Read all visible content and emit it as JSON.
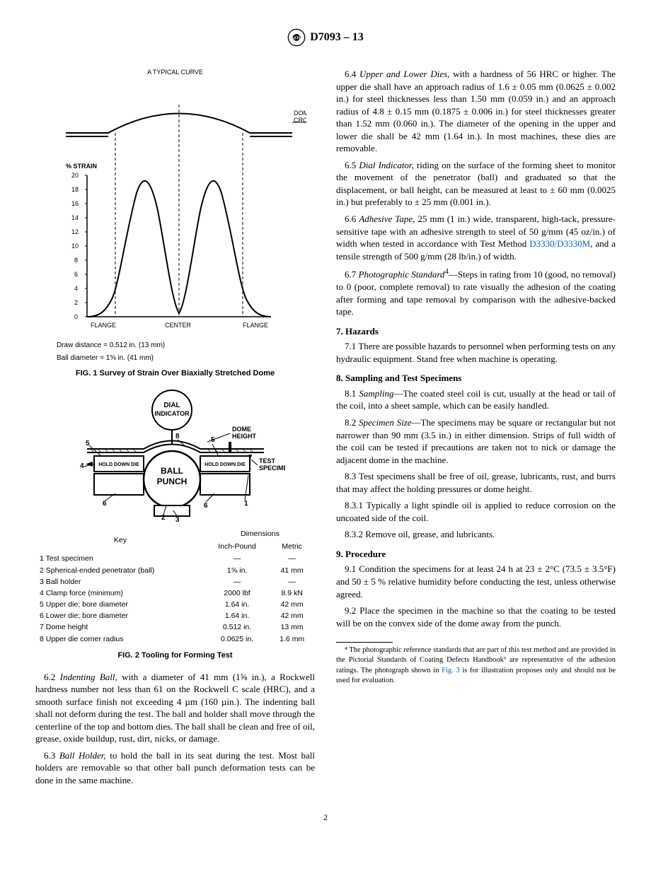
{
  "header": {
    "standard": "D7093 – 13"
  },
  "fig1": {
    "title_top": "A TYPICAL CURVE",
    "label_dome": "DOME\nCROSS-SECTION",
    "label_strain": "% STRAIN",
    "x_labels": {
      "left": "FLANGE",
      "center": "CENTER",
      "right": "FLANGE"
    },
    "y_ticks": [
      0,
      2,
      4,
      6,
      8,
      10,
      12,
      14,
      16,
      18,
      20
    ],
    "curve_points": [
      [
        0,
        0
      ],
      [
        10,
        1
      ],
      [
        20,
        4
      ],
      [
        30,
        12
      ],
      [
        40,
        18
      ],
      [
        50,
        20
      ],
      [
        60,
        17
      ],
      [
        70,
        8
      ],
      [
        80,
        2
      ],
      [
        85,
        0.5
      ],
      [
        90,
        2
      ],
      [
        100,
        8
      ],
      [
        110,
        17
      ],
      [
        120,
        20
      ],
      [
        130,
        18
      ],
      [
        140,
        12
      ],
      [
        150,
        4
      ],
      [
        160,
        1
      ],
      [
        170,
        0
      ]
    ],
    "dome_curve": [
      [
        0,
        0
      ],
      [
        30,
        1
      ],
      [
        60,
        6
      ],
      [
        85,
        12
      ],
      [
        100,
        14
      ],
      [
        115,
        12
      ],
      [
        140,
        6
      ],
      [
        170,
        1
      ],
      [
        200,
        0
      ]
    ],
    "note1": "Draw distance = 0.512 in. (13 mm)",
    "note2": "Ball diameter = 1⅝ in. (41 mm)",
    "caption": "FIG. 1 Survey of Strain Over Biaxially Stretched Dome"
  },
  "fig2": {
    "dial": "DIAL",
    "indicator": "INDICATOR",
    "ball": "BALL",
    "punch": "PUNCH",
    "hold_down": "HOLD DOWN DIE",
    "dome_h": "DOME\nHEIGHT",
    "test_spec": "TEST\nSPECIMEN",
    "key_head": "Key",
    "dim_head": "Dimensions",
    "col_ip": "Inch-Pound",
    "col_m": "Metric",
    "rows": [
      {
        "n": "1",
        "label": "Test specimen",
        "ip": "—",
        "m": "—"
      },
      {
        "n": "2",
        "label": "Spherical-ended penetrator (ball)",
        "ip": "1⅝ in.",
        "m": "41 mm"
      },
      {
        "n": "3",
        "label": "Ball holder",
        "ip": "—",
        "m": "—"
      },
      {
        "n": "4",
        "label": "Clamp force (minimum)",
        "ip": "2000 lbf",
        "m": "8.9 kN"
      },
      {
        "n": "5",
        "label": "Upper die; bore diameter",
        "ip": "1.64 in.",
        "m": "42 mm"
      },
      {
        "n": "6",
        "label": "Lower die; bore diameter",
        "ip": "1.64 in.",
        "m": "42 mm"
      },
      {
        "n": "7",
        "label": "Dome height",
        "ip": "0.512 in.",
        "m": "13 mm"
      },
      {
        "n": "8",
        "label": "Upper die corner radius",
        "ip": "0.0625 in.",
        "m": "1.6 mm"
      }
    ],
    "caption": "FIG. 2 Tooling for Forming Test"
  },
  "left_text": {
    "p62": "6.2 Indenting Ball, with a diameter of 41 mm (1⅝ in.), a Rockwell hardness number not less than 61 on the Rockwell C scale (HRC), and a smooth surface finish not exceeding 4 µm (160 µin.). The indenting ball shall not deform during the test. The ball and holder shall move through the centerline of the top and bottom dies. The ball shall be clean and free of oil, grease, oxide buildup, rust, dirt, nicks, or damage.",
    "p63": "6.3 Ball Holder, to hold the ball in its seat during the test. Most ball holders are removable so that other ball punch deformation tests can be done in the same machine."
  },
  "right_text": {
    "p64": "6.4 Upper and Lower Dies, with a hardness of 56 HRC or higher. The upper die shall have an approach radius of 1.6 ± 0.05 mm (0.0625 ± 0.002 in.) for steel thicknesses less than 1.50 mm (0.059 in.) and an approach radius of 4.8 ± 0.15 mm (0.1875 ± 0.006 in.) for steel thicknesses greater than 1.52 mm (0.060 in.). The diameter of the opening in the upper and lower die shall be 42 mm (1.64 in.). In most machines, these dies are removable.",
    "p65": "6.5 Dial Indicator, riding on the surface of the forming sheet to monitor the movement of the penetrator (ball) and graduated so that the displacement, or ball height, can be measured at least to ± 60 mm (0.0025 in.) but preferably to ± 25 mm (0.001 in.).",
    "p66a": "6.6 Adhesive Tape, 25 mm (1 in.) wide, transparent, high-tack, pressure-sensitive tape with an adhesive strength to steel of 50 g/mm (45 oz/in.) of width when tested in accordance with Test Method ",
    "p66_link": "D3330/D3330M",
    "p66b": ", and a tensile strength of 500 g/mm (28 lb/in.) of width.",
    "p67": "6.7 Photographic Standard⁴—Steps in rating from 10 (good, no removal) to 0 (poor, complete removal) to rate visually the adhesion of the coating after forming and tape removal by comparison with the adhesive-backed tape.",
    "s7": "7. Hazards",
    "p71": "7.1 There are possible hazards to personnel when performing tests on any hydraulic equipment. Stand free when machine is operating.",
    "s8": "8. Sampling and Test Specimens",
    "p81": "8.1 Sampling—The coated steel coil is cut, usually at the head or tail of the coil, into a sheet sample, which can be easily handled.",
    "p82": "8.2 Specimen Size—The specimens may be square or rectangular but not narrower than 90 mm (3.5 in.) in either dimension. Strips of full width of the coil can be tested if precautions are taken not to nick or damage the adjacent dome in the machine.",
    "p83": "8.3 Test specimens shall be free of oil, grease, lubricants, rust, and burrs that may affect the holding pressures or dome height.",
    "p831": "8.3.1 Typically a light spindle oil is applied to reduce corrosion on the uncoated side of the coil.",
    "p832": "8.3.2 Remove oil, grease, and lubricants.",
    "s9": "9. Procedure",
    "p91": "9.1 Condition the specimens for at least 24 h at 23 ± 2°C (73.5 ± 3.5°F) and 50 ± 5 % relative humidity before conducting the test, unless otherwise agreed.",
    "p92": "9.2 Place the specimen in the machine so that the coating to be tested will be on the convex side of the dome away from the punch.",
    "footnote": "⁴ The photographic reference standards that are part of this test method and are provided in the Pictorial Standards of Coating Defects Handbook³ are representative of the adhesion ratings. The photograph shown in ",
    "footnote_link": "Fig. 3",
    "footnote_b": " is for illustration proposes only and should not be used for evaluation."
  },
  "page_num": "2"
}
